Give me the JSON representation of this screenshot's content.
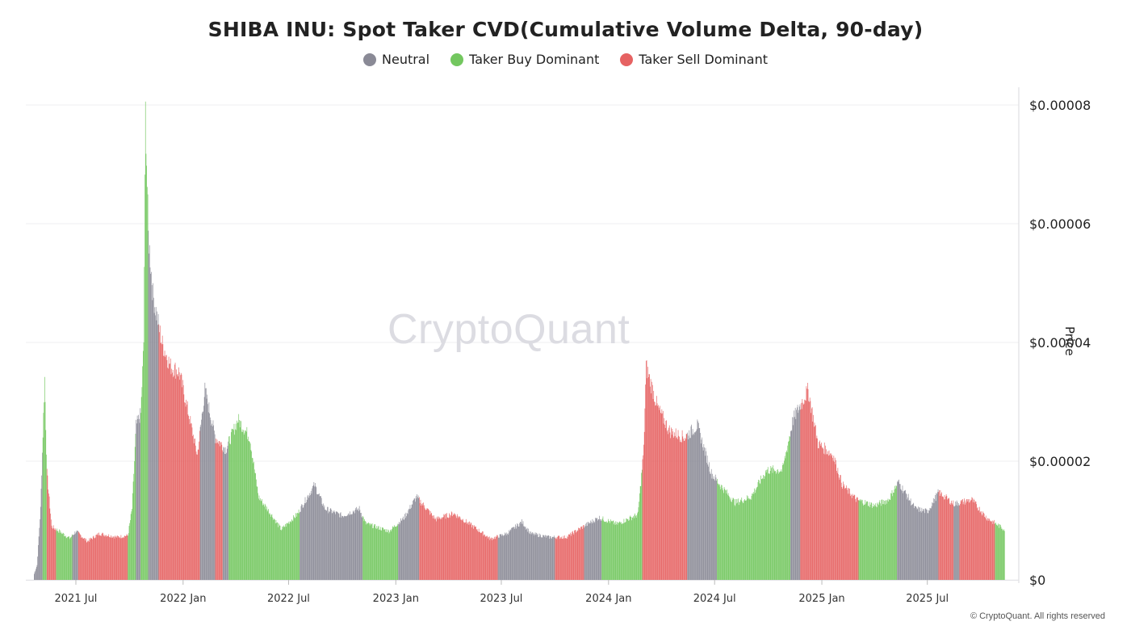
{
  "chart_data": {
    "type": "bar",
    "title": "SHIBA INU: Spot Taker CVD(Cumulative Volume Delta, 90-day)",
    "ylabel": "Price",
    "y_ticks": [
      "$0.00008",
      "$0.00006",
      "$0.00004",
      "$0.00002",
      "$0"
    ],
    "ylim": [
      0,
      8e-05
    ],
    "x_ticks": [
      "2021 Jul",
      "2022 Jan",
      "2022 Jul",
      "2023 Jan",
      "2023 Jul",
      "2024 Jan",
      "2024 Jul",
      "2025 Jan",
      "2025 Jul"
    ],
    "x_range": [
      "2021-04-20",
      "2025-11-10"
    ],
    "grid": true,
    "legend_position": "top",
    "series": [
      {
        "name": "Neutral",
        "color": "#8a8a96"
      },
      {
        "name": "Taker Buy Dominant",
        "color": "#73c75f"
      },
      {
        "name": "Taker Sell Dominant",
        "color": "#e66262"
      }
    ],
    "price_points": [
      [
        "2021-04-20",
        1e-06
      ],
      [
        "2021-04-25",
        2.5e-06
      ],
      [
        "2021-05-01",
        1.2e-05
      ],
      [
        "2021-05-08",
        3.4e-05
      ],
      [
        "2021-05-12",
        1.8e-05
      ],
      [
        "2021-05-20",
        9e-06
      ],
      [
        "2021-06-05",
        8e-06
      ],
      [
        "2021-06-20",
        7e-06
      ],
      [
        "2021-07-01",
        8.2e-06
      ],
      [
        "2021-07-20",
        6.5e-06
      ],
      [
        "2021-08-10",
        7.8e-06
      ],
      [
        "2021-09-10",
        7.2e-06
      ],
      [
        "2021-09-28",
        7.5e-06
      ],
      [
        "2021-10-05",
        1.2e-05
      ],
      [
        "2021-10-12",
        2.6e-05
      ],
      [
        "2021-10-20",
        2.8e-05
      ],
      [
        "2021-10-25",
        4e-05
      ],
      [
        "2021-10-28",
        7.9e-05
      ],
      [
        "2021-11-02",
        5.8e-05
      ],
      [
        "2021-11-10",
        4.8e-05
      ],
      [
        "2021-11-25",
        4e-05
      ],
      [
        "2021-12-10",
        3.6e-05
      ],
      [
        "2021-12-25",
        3.5e-05
      ],
      [
        "2022-01-10",
        2.8e-05
      ],
      [
        "2022-01-25",
        2.1e-05
      ],
      [
        "2022-02-07",
        3.2e-05
      ],
      [
        "2022-02-25",
        2.4e-05
      ],
      [
        "2022-03-15",
        2.2e-05
      ],
      [
        "2022-04-05",
        2.7e-05
      ],
      [
        "2022-04-25",
        2.4e-05
      ],
      [
        "2022-05-10",
        1.4e-05
      ],
      [
        "2022-06-01",
        1.1e-05
      ],
      [
        "2022-06-18",
        8.5e-06
      ],
      [
        "2022-07-15",
        1.1e-05
      ],
      [
        "2022-08-14",
        1.6e-05
      ],
      [
        "2022-09-01",
        1.2e-05
      ],
      [
        "2022-10-01",
        1.08e-05
      ],
      [
        "2022-10-30",
        1.2e-05
      ],
      [
        "2022-11-10",
        9.5e-06
      ],
      [
        "2022-12-20",
        8.2e-06
      ],
      [
        "2023-01-15",
        1.05e-05
      ],
      [
        "2023-02-05",
        1.4e-05
      ],
      [
        "2023-03-10",
        1.02e-05
      ],
      [
        "2023-04-10",
        1.12e-05
      ],
      [
        "2023-05-15",
        8.9e-06
      ],
      [
        "2023-06-12",
        6.9e-06
      ],
      [
        "2023-07-10",
        7.8e-06
      ],
      [
        "2023-08-05",
        9.8e-06
      ],
      [
        "2023-08-20",
        7.8e-06
      ],
      [
        "2023-09-20",
        7.2e-06
      ],
      [
        "2023-10-20",
        7.2e-06
      ],
      [
        "2023-11-15",
        8.8e-06
      ],
      [
        "2023-12-15",
        1.05e-05
      ],
      [
        "2024-01-15",
        9.4e-06
      ],
      [
        "2024-02-20",
        1.1e-05
      ],
      [
        "2024-03-01",
        2.2e-05
      ],
      [
        "2024-03-05",
        3.6e-05
      ],
      [
        "2024-03-25",
        2.9e-05
      ],
      [
        "2024-04-15",
        2.5e-05
      ],
      [
        "2024-05-10",
        2.4e-05
      ],
      [
        "2024-06-01",
        2.6e-05
      ],
      [
        "2024-06-25",
        1.8e-05
      ],
      [
        "2024-07-10",
        1.6e-05
      ],
      [
        "2024-08-05",
        1.3e-05
      ],
      [
        "2024-09-01",
        1.4e-05
      ],
      [
        "2024-09-28",
        1.85e-05
      ],
      [
        "2024-10-25",
        1.85e-05
      ],
      [
        "2024-11-12",
        2.7e-05
      ],
      [
        "2024-12-08",
        3.2e-05
      ],
      [
        "2024-12-25",
        2.3e-05
      ],
      [
        "2025-01-20",
        2.1e-05
      ],
      [
        "2025-02-05",
        1.6e-05
      ],
      [
        "2025-03-01",
        1.35e-05
      ],
      [
        "2025-04-01",
        1.25e-05
      ],
      [
        "2025-04-25",
        1.35e-05
      ],
      [
        "2025-05-12",
        1.65e-05
      ],
      [
        "2025-06-10",
        1.2e-05
      ],
      [
        "2025-07-01",
        1.15e-05
      ],
      [
        "2025-07-20",
        1.48e-05
      ],
      [
        "2025-08-15",
        1.28e-05
      ],
      [
        "2025-09-15",
        1.35e-05
      ],
      [
        "2025-10-10",
        1.05e-05
      ],
      [
        "2025-11-10",
        8.5e-06
      ]
    ],
    "regime_segments": [
      [
        "2021-04-20",
        "2021-05-05",
        "Neutral"
      ],
      [
        "2021-05-05",
        "2021-05-12",
        "Taker Buy Dominant"
      ],
      [
        "2021-05-12",
        "2021-05-28",
        "Taker Sell Dominant"
      ],
      [
        "2021-05-28",
        "2021-06-25",
        "Taker Buy Dominant"
      ],
      [
        "2021-06-25",
        "2021-07-05",
        "Neutral"
      ],
      [
        "2021-07-05",
        "2021-09-28",
        "Taker Sell Dominant"
      ],
      [
        "2021-09-28",
        "2021-10-12",
        "Taker Buy Dominant"
      ],
      [
        "2021-10-12",
        "2021-10-20",
        "Neutral"
      ],
      [
        "2021-10-20",
        "2021-11-02",
        "Taker Buy Dominant"
      ],
      [
        "2021-11-02",
        "2021-11-20",
        "Neutral"
      ],
      [
        "2021-11-20",
        "2022-01-30",
        "Taker Sell Dominant"
      ],
      [
        "2022-01-30",
        "2022-02-25",
        "Neutral"
      ],
      [
        "2022-02-25",
        "2022-03-10",
        "Taker Sell Dominant"
      ],
      [
        "2022-03-10",
        "2022-03-20",
        "Neutral"
      ],
      [
        "2022-03-20",
        "2022-07-20",
        "Taker Buy Dominant"
      ],
      [
        "2022-07-20",
        "2022-11-05",
        "Neutral"
      ],
      [
        "2022-11-05",
        "2023-01-05",
        "Taker Buy Dominant"
      ],
      [
        "2023-01-05",
        "2023-02-10",
        "Neutral"
      ],
      [
        "2023-02-10",
        "2023-06-25",
        "Taker Sell Dominant"
      ],
      [
        "2023-06-25",
        "2023-10-01",
        "Neutral"
      ],
      [
        "2023-10-01",
        "2023-11-20",
        "Taker Sell Dominant"
      ],
      [
        "2023-11-20",
        "2023-12-20",
        "Neutral"
      ],
      [
        "2023-12-20",
        "2024-02-28",
        "Taker Buy Dominant"
      ],
      [
        "2024-02-28",
        "2024-05-15",
        "Taker Sell Dominant"
      ],
      [
        "2024-05-15",
        "2024-07-05",
        "Neutral"
      ],
      [
        "2024-07-05",
        "2024-11-08",
        "Taker Buy Dominant"
      ],
      [
        "2024-11-08",
        "2024-11-25",
        "Neutral"
      ],
      [
        "2024-11-25",
        "2025-03-05",
        "Taker Sell Dominant"
      ],
      [
        "2025-03-05",
        "2025-05-10",
        "Taker Buy Dominant"
      ],
      [
        "2025-05-10",
        "2025-07-20",
        "Neutral"
      ],
      [
        "2025-07-20",
        "2025-08-15",
        "Taker Sell Dominant"
      ],
      [
        "2025-08-15",
        "2025-08-25",
        "Neutral"
      ],
      [
        "2025-08-25",
        "2025-10-25",
        "Taker Sell Dominant"
      ],
      [
        "2025-10-25",
        "2025-11-10",
        "Taker Buy Dominant"
      ]
    ]
  },
  "watermark": "CryptoQuant",
  "copyright": "© CryptoQuant. All rights reserved"
}
